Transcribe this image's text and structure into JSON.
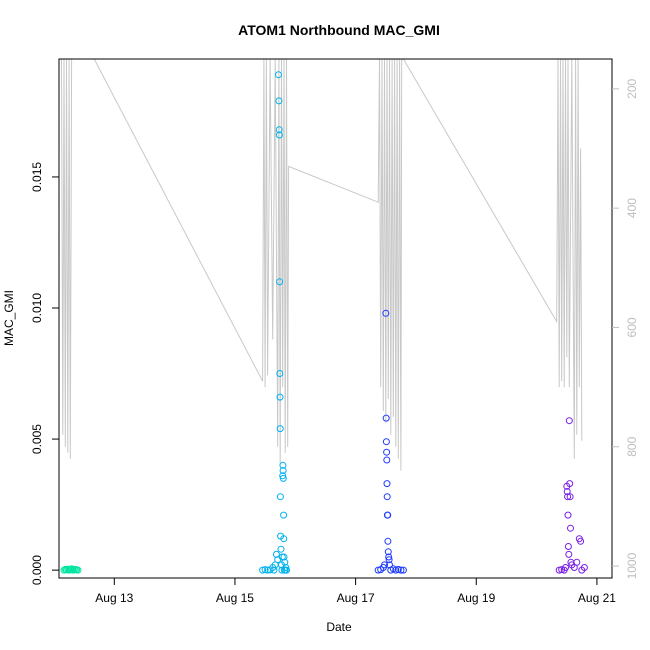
{
  "chart_data": {
    "type": "scatter",
    "title": "ATOM1 Northbound MAC_GMI",
    "xlabel": "Date",
    "ylabel": "MAC_GMI",
    "xlim": [
      "2016-08-12T02:00",
      "2016-08-21T06:00"
    ],
    "ylim": [
      -0.0003,
      0.0195
    ],
    "x_ticks": [
      {
        "label": "Aug 13",
        "date": "2016-08-13T00:00"
      },
      {
        "label": "Aug 15",
        "date": "2016-08-15T00:00"
      },
      {
        "label": "Aug 17",
        "date": "2016-08-17T00:00"
      },
      {
        "label": "Aug 19",
        "date": "2016-08-19T00:00"
      },
      {
        "label": "Aug 21",
        "date": "2016-08-21T00:00"
      }
    ],
    "y_ticks": [
      "0.000",
      "0.005",
      "0.010",
      "0.015"
    ],
    "secondary_axis": {
      "side": "right",
      "color": "#bebebe",
      "ylim": [
        1020,
        150
      ],
      "ticks": [
        "200",
        "400",
        "600",
        "800",
        "1000"
      ]
    },
    "grid": false,
    "legend": "none",
    "series": [
      {
        "color": "#00e5a0",
        "points": [
          [
            "2016-08-12T04:00",
            0.0
          ],
          [
            "2016-08-12T04:30",
            3e-05
          ],
          [
            "2016-08-12T05:00",
            1e-05
          ],
          [
            "2016-08-12T05:30",
            4e-05
          ],
          [
            "2016-08-12T06:00",
            0.0
          ],
          [
            "2016-08-12T06:30",
            2e-05
          ],
          [
            "2016-08-12T07:00",
            5e-05
          ],
          [
            "2016-08-12T07:30",
            0.0
          ],
          [
            "2016-08-12T08:00",
            3e-05
          ],
          [
            "2016-08-12T08:30",
            1e-05
          ],
          [
            "2016-08-12T09:00",
            2e-05
          ],
          [
            "2016-08-12T09:30",
            0.0
          ]
        ]
      },
      {
        "color": "#00b2ee",
        "points": [
          [
            "2016-08-15T11:00",
            0.0
          ],
          [
            "2016-08-15T12:00",
            2e-05
          ],
          [
            "2016-08-15T13:00",
            0.0
          ],
          [
            "2016-08-15T14:00",
            1e-05
          ],
          [
            "2016-08-15T15:00",
            0.0001
          ],
          [
            "2016-08-15T15:30",
            0.0
          ],
          [
            "2016-08-15T16:00",
            0.0002
          ],
          [
            "2016-08-15T16:30",
            0.0006
          ],
          [
            "2016-08-15T17:00",
            0.0004
          ],
          [
            "2016-08-15T17:20",
            0.0189
          ],
          [
            "2016-08-15T17:30",
            0.0179
          ],
          [
            "2016-08-15T17:35",
            0.0168
          ],
          [
            "2016-08-15T17:40",
            0.0166
          ],
          [
            "2016-08-15T17:45",
            0.011
          ],
          [
            "2016-08-15T17:50",
            0.0075
          ],
          [
            "2016-08-15T17:55",
            0.0066
          ],
          [
            "2016-08-15T18:00",
            0.0054
          ],
          [
            "2016-08-15T18:05",
            0.0028
          ],
          [
            "2016-08-15T18:10",
            0.0013
          ],
          [
            "2016-08-15T18:20",
            0.0008
          ],
          [
            "2016-08-15T18:30",
            0.0002
          ],
          [
            "2016-08-15T18:40",
            0.0
          ],
          [
            "2016-08-15T18:50",
            0.0005
          ],
          [
            "2016-08-15T19:00",
            0.0036
          ],
          [
            "2016-08-15T19:05",
            0.004
          ],
          [
            "2016-08-15T19:10",
            0.0038
          ],
          [
            "2016-08-15T19:15",
            0.0035
          ],
          [
            "2016-08-15T19:20",
            0.0021
          ],
          [
            "2016-08-15T19:25",
            0.0012
          ],
          [
            "2016-08-15T19:30",
            0.0005
          ],
          [
            "2016-08-15T19:40",
            0.0
          ],
          [
            "2016-08-15T19:50",
            0.0003
          ],
          [
            "2016-08-15T20:00",
            0.0
          ],
          [
            "2016-08-15T20:15",
            0.0001
          ],
          [
            "2016-08-15T20:30",
            0.0
          ]
        ]
      },
      {
        "color": "#1e3cff",
        "points": [
          [
            "2016-08-17T09:00",
            0.0
          ],
          [
            "2016-08-17T10:00",
            2e-05
          ],
          [
            "2016-08-17T11:00",
            0.0001
          ],
          [
            "2016-08-17T11:30",
            0.0002
          ],
          [
            "2016-08-17T12:00",
            0.0098
          ],
          [
            "2016-08-17T12:10",
            0.0058
          ],
          [
            "2016-08-17T12:15",
            0.0049
          ],
          [
            "2016-08-17T12:20",
            0.0045
          ],
          [
            "2016-08-17T12:25",
            0.0042
          ],
          [
            "2016-08-17T12:30",
            0.0033
          ],
          [
            "2016-08-17T12:35",
            0.0028
          ],
          [
            "2016-08-17T12:40",
            0.0021
          ],
          [
            "2016-08-17T12:45",
            0.0021
          ],
          [
            "2016-08-17T12:50",
            0.0011
          ],
          [
            "2016-08-17T13:00",
            0.0007
          ],
          [
            "2016-08-17T13:10",
            0.0005
          ],
          [
            "2016-08-17T13:20",
            0.0004
          ],
          [
            "2016-08-17T13:30",
            0.0002
          ],
          [
            "2016-08-17T14:00",
            0.0
          ],
          [
            "2016-08-17T15:00",
            5e-05
          ],
          [
            "2016-08-17T16:00",
            0.0
          ],
          [
            "2016-08-17T17:00",
            3e-05
          ],
          [
            "2016-08-17T18:00",
            0.0
          ],
          [
            "2016-08-17T19:00",
            0.0
          ]
        ]
      },
      {
        "color": "#7a1fe6",
        "points": [
          [
            "2016-08-20T09:00",
            0.0
          ],
          [
            "2016-08-20T10:00",
            2e-05
          ],
          [
            "2016-08-20T11:00",
            0.0
          ],
          [
            "2016-08-20T11:30",
            0.0001
          ],
          [
            "2016-08-20T12:00",
            0.0032
          ],
          [
            "2016-08-20T12:10",
            0.003
          ],
          [
            "2016-08-20T12:20",
            0.0028
          ],
          [
            "2016-08-20T12:30",
            0.0021
          ],
          [
            "2016-08-20T12:40",
            0.0009
          ],
          [
            "2016-08-20T12:50",
            0.0006
          ],
          [
            "2016-08-20T13:00",
            0.0057
          ],
          [
            "2016-08-20T13:10",
            0.0033
          ],
          [
            "2016-08-20T13:20",
            0.0028
          ],
          [
            "2016-08-20T13:30",
            0.0016
          ],
          [
            "2016-08-20T13:40",
            0.0003
          ],
          [
            "2016-08-20T14:00",
            0.0002
          ],
          [
            "2016-08-20T15:00",
            0.0001
          ],
          [
            "2016-08-20T16:00",
            0.0003
          ],
          [
            "2016-08-20T17:00",
            0.0012
          ],
          [
            "2016-08-20T17:30",
            0.0011
          ],
          [
            "2016-08-20T18:00",
            0.0
          ],
          [
            "2016-08-20T19:00",
            0.0001
          ]
        ]
      }
    ],
    "secondary_line": {
      "color": "#c8c8c8",
      "points": [
        [
          "2016-08-12T03:00",
          150
        ],
        [
          "2016-08-12T03:30",
          780
        ],
        [
          "2016-08-12T04:00",
          150
        ],
        [
          "2016-08-12T04:30",
          800
        ],
        [
          "2016-08-12T05:00",
          150
        ],
        [
          "2016-08-12T05:30",
          810
        ],
        [
          "2016-08-12T06:00",
          150
        ],
        [
          "2016-08-12T06:30",
          820
        ],
        [
          "2016-08-12T07:00",
          150
        ],
        [
          "2016-08-12T07:30",
          150
        ],
        [
          "2016-08-12T11:00",
          150
        ],
        [
          "2016-08-12T16:00",
          150
        ],
        [
          "2016-08-15T11:00",
          690
        ],
        [
          "2016-08-15T11:30",
          150
        ],
        [
          "2016-08-15T12:00",
          700
        ],
        [
          "2016-08-15T12:30",
          150
        ],
        [
          "2016-08-15T13:00",
          680
        ],
        [
          "2016-08-15T14:00",
          150
        ],
        [
          "2016-08-15T15:00",
          620
        ],
        [
          "2016-08-15T16:00",
          150
        ],
        [
          "2016-08-15T17:00",
          800
        ],
        [
          "2016-08-15T17:30",
          150
        ],
        [
          "2016-08-15T18:00",
          830
        ],
        [
          "2016-08-15T18:30",
          150
        ],
        [
          "2016-08-15T19:00",
          700
        ],
        [
          "2016-08-15T19:30",
          150
        ],
        [
          "2016-08-15T20:00",
          810
        ],
        [
          "2016-08-15T20:30",
          150
        ],
        [
          "2016-08-15T21:00",
          800
        ],
        [
          "2016-08-15T21:20",
          330
        ],
        [
          "2016-08-17T09:00",
          390
        ],
        [
          "2016-08-17T09:30",
          150
        ],
        [
          "2016-08-17T10:00",
          700
        ],
        [
          "2016-08-17T10:30",
          150
        ],
        [
          "2016-08-17T11:00",
          740
        ],
        [
          "2016-08-17T11:30",
          150
        ],
        [
          "2016-08-17T12:00",
          760
        ],
        [
          "2016-08-17T12:30",
          150
        ],
        [
          "2016-08-17T13:00",
          720
        ],
        [
          "2016-08-17T13:30",
          150
        ],
        [
          "2016-08-17T14:00",
          780
        ],
        [
          "2016-08-17T14:30",
          150
        ],
        [
          "2016-08-17T15:00",
          750
        ],
        [
          "2016-08-17T15:30",
          150
        ],
        [
          "2016-08-17T16:00",
          800
        ],
        [
          "2016-08-17T16:30",
          150
        ],
        [
          "2016-08-17T17:00",
          820
        ],
        [
          "2016-08-17T17:30",
          150
        ],
        [
          "2016-08-17T18:00",
          840
        ],
        [
          "2016-08-17T18:20",
          150
        ],
        [
          "2016-08-17T19:00",
          150
        ],
        [
          "2016-08-20T08:00",
          590
        ],
        [
          "2016-08-20T08:30",
          150
        ],
        [
          "2016-08-20T09:00",
          700
        ],
        [
          "2016-08-20T09:30",
          150
        ],
        [
          "2016-08-20T10:00",
          690
        ],
        [
          "2016-08-20T10:30",
          150
        ],
        [
          "2016-08-20T11:00",
          700
        ],
        [
          "2016-08-20T11:30",
          150
        ],
        [
          "2016-08-20T12:00",
          650
        ],
        [
          "2016-08-20T12:30",
          150
        ],
        [
          "2016-08-20T13:00",
          700
        ],
        [
          "2016-08-20T14:00",
          150
        ],
        [
          "2016-08-20T15:00",
          820
        ],
        [
          "2016-08-20T15:30",
          150
        ],
        [
          "2016-08-20T16:00",
          780
        ],
        [
          "2016-08-20T16:30",
          150
        ],
        [
          "2016-08-20T17:00",
          700
        ],
        [
          "2016-08-20T17:30",
          300
        ],
        [
          "2016-08-20T18:00",
          790
        ]
      ]
    }
  }
}
